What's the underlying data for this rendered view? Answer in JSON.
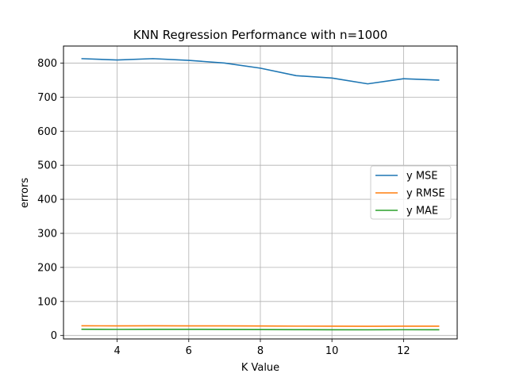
{
  "chart_data": {
    "type": "line",
    "title": "KNN Regression Performance with n=1000",
    "xlabel": "K Value",
    "ylabel": "errors",
    "xlim": [
      2.5,
      13.5
    ],
    "ylim": [
      -10,
      850
    ],
    "xticks": [
      4,
      6,
      8,
      10,
      12
    ],
    "yticks": [
      0,
      100,
      200,
      300,
      400,
      500,
      600,
      700,
      800
    ],
    "grid": true,
    "legend_position": "center-right",
    "x": [
      3,
      4,
      5,
      6,
      7,
      8,
      9,
      10,
      11,
      12,
      13
    ],
    "series": [
      {
        "name": "y MSE",
        "color": "#1f77b4",
        "values": [
          813,
          809,
          813,
          808,
          800,
          785,
          763,
          756,
          739,
          754,
          750
        ]
      },
      {
        "name": "y RMSE",
        "color": "#ff7f0e",
        "values": [
          28.5,
          28.4,
          28.5,
          28.4,
          28.3,
          28.0,
          27.6,
          27.5,
          27.2,
          27.5,
          27.4
        ]
      },
      {
        "name": "y MAE",
        "color": "#2ca02c",
        "values": [
          18.5,
          18.0,
          18.2,
          18.1,
          17.9,
          17.5,
          17.2,
          17.0,
          16.8,
          17.1,
          17.0
        ]
      }
    ]
  }
}
